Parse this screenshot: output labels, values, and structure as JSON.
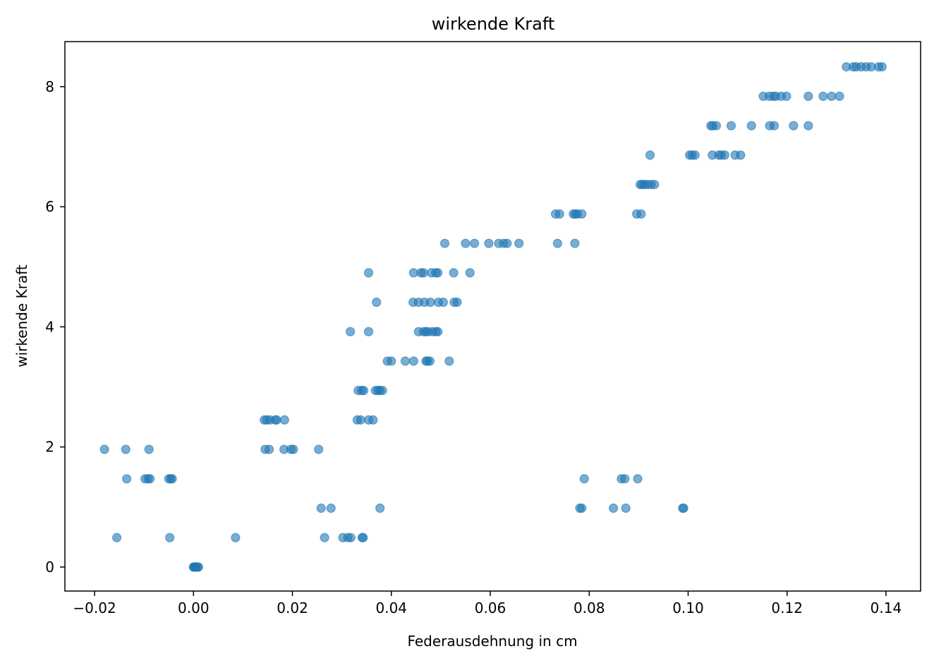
{
  "chart_data": {
    "type": "scatter",
    "title": "wirkende Kraft",
    "xlabel": "Federausdehnung in cm",
    "ylabel": "wirkende Kraft",
    "xlim": [
      -0.026,
      0.147
    ],
    "ylim": [
      -0.4,
      8.75
    ],
    "xticks": [
      -0.02,
      0.0,
      0.02,
      0.04,
      0.06,
      0.08,
      0.1,
      0.12,
      0.14
    ],
    "xtick_labels": [
      "−0.02",
      "0.00",
      "0.02",
      "0.04",
      "0.06",
      "0.08",
      "0.10",
      "0.12",
      "0.14"
    ],
    "yticks": [
      0,
      2,
      4,
      6,
      8
    ],
    "ytick_labels": [
      "0",
      "2",
      "4",
      "6",
      "8"
    ],
    "grid": false,
    "marker_color": "#1f77b4",
    "marker_alpha": 0.6,
    "series": [
      {
        "x": [
          0.0,
          0.0002,
          0.0005,
          0.0008,
          0.001,
          0.0001,
          0.0004,
          -0.0155,
          -0.0048,
          0.0085,
          0.0265,
          0.0302,
          0.0312,
          0.0318,
          0.0341,
          0.0343,
          0.0258,
          0.0278,
          0.0377,
          0.0781,
          0.0785,
          0.0849,
          0.0874,
          0.0989,
          0.0991,
          -0.0135,
          -0.0098,
          -0.0092,
          -0.0088,
          -0.005,
          -0.0046,
          -0.0043,
          0.079,
          0.0865,
          0.0872,
          0.0898,
          -0.018,
          -0.0137,
          -0.009,
          0.0145,
          0.0153,
          0.0183,
          0.0197,
          0.0202,
          0.0253,
          0.0143,
          0.0148,
          0.0154,
          0.0165,
          0.0168,
          0.0184,
          0.0331,
          0.0338,
          0.0354,
          0.0363,
          0.0333,
          0.034,
          0.0344,
          0.0368,
          0.0373,
          0.0377,
          0.0382,
          0.0392,
          0.04,
          0.0428,
          0.0445,
          0.047,
          0.0473,
          0.0478,
          0.0517,
          0.0317,
          0.0354,
          0.0455,
          0.0465,
          0.047,
          0.0474,
          0.0483,
          0.049,
          0.0494,
          0.037,
          0.0444,
          0.0455,
          0.0467,
          0.0479,
          0.0495,
          0.0505,
          0.0527,
          0.0533,
          0.0354,
          0.0445,
          0.046,
          0.0465,
          0.0481,
          0.049,
          0.0494,
          0.0526,
          0.0559,
          0.0508,
          0.055,
          0.0568,
          0.0597,
          0.0617,
          0.0627,
          0.0634,
          0.0658,
          0.0736,
          0.0771,
          0.0732,
          0.074,
          0.0768,
          0.0772,
          0.0776,
          0.0785,
          0.0896,
          0.0905,
          0.0903,
          0.0907,
          0.0912,
          0.0918,
          0.0925,
          0.0932,
          0.0923,
          0.1003,
          0.1008,
          0.1014,
          0.1049,
          0.1062,
          0.1067,
          0.1074,
          0.1095,
          0.1106,
          0.1046,
          0.105,
          0.1057,
          0.1087,
          0.1128,
          0.1165,
          0.1174,
          0.1213,
          0.1243,
          0.1152,
          0.1164,
          0.1172,
          0.1177,
          0.1188,
          0.1199,
          0.1243,
          0.1273,
          0.129,
          0.1306,
          0.132,
          0.1334,
          0.134,
          0.135,
          0.136,
          0.137,
          0.1385,
          0.1392
        ],
        "y": [
          0.0,
          0.0,
          0.0,
          0.0,
          0.0,
          0.0,
          0.0,
          0.49,
          0.49,
          0.49,
          0.49,
          0.49,
          0.49,
          0.49,
          0.49,
          0.49,
          0.98,
          0.98,
          0.98,
          0.98,
          0.98,
          0.98,
          0.98,
          0.98,
          0.98,
          1.47,
          1.47,
          1.47,
          1.47,
          1.47,
          1.47,
          1.47,
          1.47,
          1.47,
          1.47,
          1.47,
          1.96,
          1.96,
          1.96,
          1.96,
          1.96,
          1.96,
          1.96,
          1.96,
          1.96,
          2.45,
          2.45,
          2.45,
          2.45,
          2.45,
          2.45,
          2.45,
          2.45,
          2.45,
          2.45,
          2.94,
          2.94,
          2.94,
          2.94,
          2.94,
          2.94,
          2.94,
          3.43,
          3.43,
          3.43,
          3.43,
          3.43,
          3.43,
          3.43,
          3.43,
          3.92,
          3.92,
          3.92,
          3.92,
          3.92,
          3.92,
          3.92,
          3.92,
          3.92,
          4.41,
          4.41,
          4.41,
          4.41,
          4.41,
          4.41,
          4.41,
          4.41,
          4.41,
          4.9,
          4.9,
          4.9,
          4.9,
          4.9,
          4.9,
          4.9,
          4.9,
          4.9,
          5.39,
          5.39,
          5.39,
          5.39,
          5.39,
          5.39,
          5.39,
          5.39,
          5.39,
          5.39,
          5.88,
          5.88,
          5.88,
          5.88,
          5.88,
          5.88,
          5.88,
          5.88,
          6.37,
          6.37,
          6.37,
          6.37,
          6.37,
          6.37,
          6.86,
          6.86,
          6.86,
          6.86,
          6.86,
          6.86,
          6.86,
          6.86,
          6.86,
          6.86,
          7.35,
          7.35,
          7.35,
          7.35,
          7.35,
          7.35,
          7.35,
          7.35,
          7.35,
          7.84,
          7.84,
          7.84,
          7.84,
          7.84,
          7.84,
          7.84,
          7.84,
          7.84,
          7.84,
          8.33,
          8.33,
          8.33,
          8.33,
          8.33,
          8.33,
          8.33,
          8.33
        ]
      }
    ]
  }
}
